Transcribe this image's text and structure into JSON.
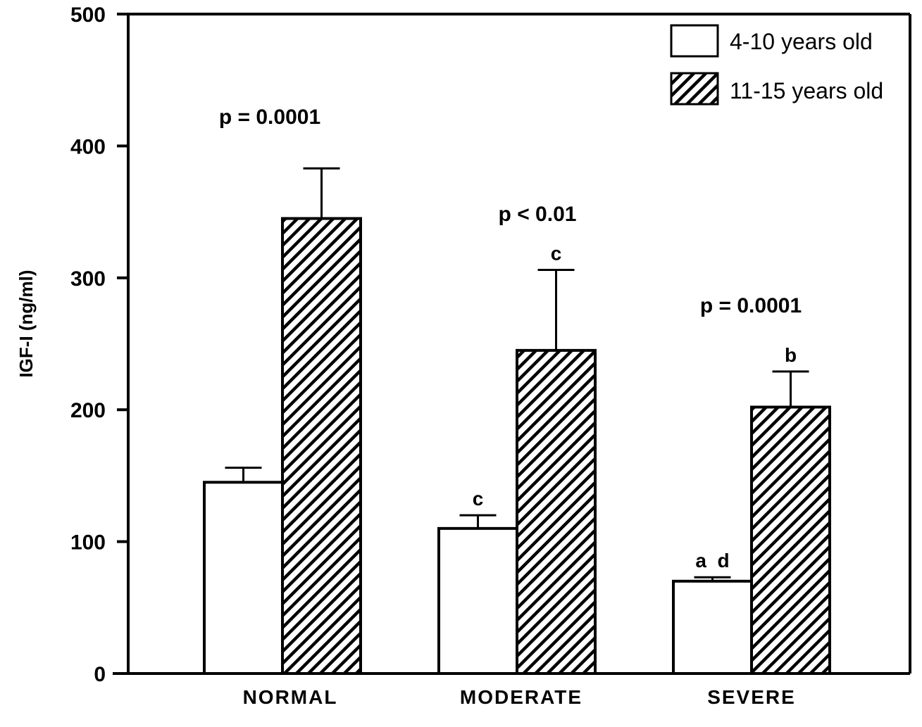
{
  "chart_data": {
    "type": "bar",
    "title": "",
    "xlabel": "",
    "ylabel": "IGF-I  (ng/ml)",
    "ylim": [
      0,
      500
    ],
    "yticks": [
      0,
      100,
      200,
      300,
      400,
      500
    ],
    "categories": [
      "NORMAL",
      "MODERATE",
      "SEVERE"
    ],
    "series": [
      {
        "name": "4-10 years old",
        "values": [
          145,
          110,
          70
        ],
        "error": [
          11,
          10,
          3
        ],
        "fill": "open",
        "labels": [
          "",
          "c",
          "a d"
        ]
      },
      {
        "name": "11-15 years old",
        "values": [
          345,
          245,
          202
        ],
        "error": [
          38,
          61,
          27
        ],
        "fill": "hatched",
        "labels": [
          "",
          "c",
          "b"
        ]
      }
    ],
    "annotations": [
      "p = 0.0001",
      "p < 0.01",
      "p = 0.0001"
    ],
    "legend_position": "top-right",
    "grid": false
  },
  "colors": {
    "ink": "#000000",
    "background": "#ffffff"
  }
}
